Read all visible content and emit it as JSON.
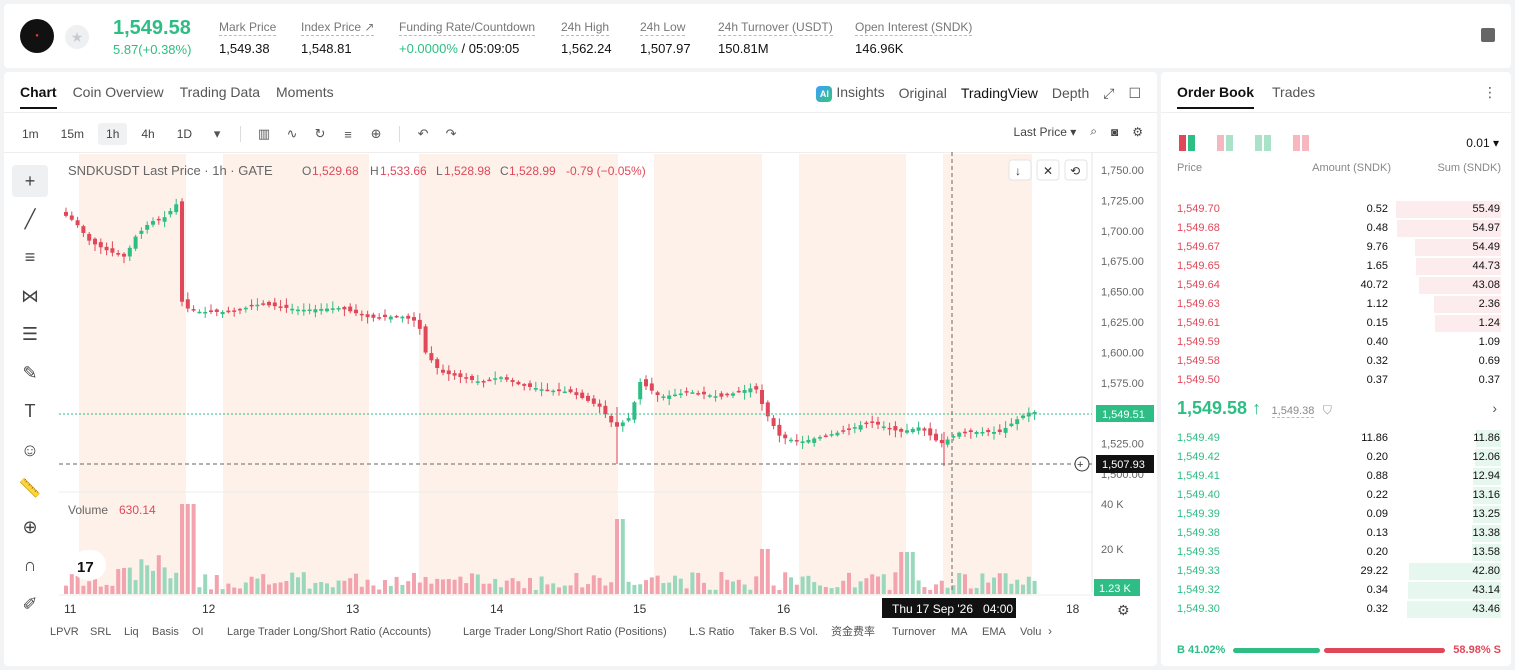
{
  "header": {
    "last_price": "1,549.58",
    "change": "5.87(+0.38%)",
    "stats": [
      {
        "label": "Mark Price",
        "value": "1,549.38"
      },
      {
        "label": "Index Price ↗",
        "value": "1,548.81"
      },
      {
        "label": "Funding Rate/Countdown",
        "value_green": "+0.0000%",
        "value": "/ 05:09:05"
      },
      {
        "label": "24h High",
        "value": "1,562.24"
      },
      {
        "label": "24h Low",
        "value": "1,507.97"
      },
      {
        "label": "24h Turnover (USDT)",
        "value": "150.81M"
      },
      {
        "label": "Open Interest (SNDK)",
        "value": "146.96K"
      }
    ]
  },
  "chart_tabs": [
    "Chart",
    "Coin Overview",
    "Trading Data",
    "Moments"
  ],
  "view_tabs": {
    "insights": "Insights",
    "original": "Original",
    "tradingview": "TradingView",
    "depth": "Depth"
  },
  "timeframes": [
    "1m",
    "15m",
    "1h",
    "4h",
    "1D"
  ],
  "toolbar_right": {
    "price_type": "Last Price"
  },
  "chart": {
    "legend_symbol": "SNDKUSDT Last Price · 1h · GATE",
    "ohlc": {
      "o": "1,529.68",
      "h": "1,533.66",
      "l": "1,528.98",
      "c": "1,528.99",
      "chg": "-0.79 (−0.05%)"
    },
    "volume_label": "Volume",
    "volume_value": "630.14",
    "current_price_tag": "1,549.51",
    "crosshair_price_tag": "1,507.93",
    "crosshair_time": "Thu 17 Sep '26   04:00",
    "volume_tag": "1.23 K",
    "price_ticks": [
      "1,750.00",
      "1,725.00",
      "1,700.00",
      "1,675.00",
      "1,650.00",
      "1,625.00",
      "1,600.00",
      "1,575.00",
      "1,550.00",
      "1,525.00",
      "1,500.00"
    ],
    "volume_ticks": [
      "40 K",
      "20 K"
    ],
    "date_ticks": [
      "11",
      "12",
      "13",
      "14",
      "15",
      "16",
      "18"
    ],
    "indicators": [
      "LPVR",
      "SRL",
      "Liq",
      "Basis",
      "OI",
      "Large Trader Long/Short Ratio (Accounts)",
      "Large Trader Long/Short Ratio (Positions)",
      "L.S Ratio",
      "Taker B.S Vol.",
      "资金费率",
      "Turnover",
      "MA",
      "EMA",
      "Volu"
    ]
  },
  "orderbook": {
    "tabs": [
      "Order Book",
      "Trades"
    ],
    "tick": "0.01 ▾",
    "columns": {
      "price": "Price",
      "amount": "Amount (SNDK)",
      "sum": "Sum (SNDK)"
    },
    "asks": [
      {
        "price": "1,549.70",
        "amount": "0.52",
        "sum": "55.49",
        "depth": 1.0
      },
      {
        "price": "1,549.68",
        "amount": "0.48",
        "sum": "54.97",
        "depth": 0.99
      },
      {
        "price": "1,549.67",
        "amount": "9.76",
        "sum": "54.49",
        "depth": 0.82
      },
      {
        "price": "1,549.65",
        "amount": "1.65",
        "sum": "44.73",
        "depth": 0.81
      },
      {
        "price": "1,549.64",
        "amount": "40.72",
        "sum": "43.08",
        "depth": 0.78
      },
      {
        "price": "1,549.63",
        "amount": "1.12",
        "sum": "2.36",
        "depth": 0.64
      },
      {
        "price": "1,549.61",
        "amount": "0.15",
        "sum": "1.24",
        "depth": 0.63
      },
      {
        "price": "1,549.59",
        "amount": "0.40",
        "sum": "1.09",
        "depth": 0
      },
      {
        "price": "1,549.58",
        "amount": "0.32",
        "sum": "0.69",
        "depth": 0
      },
      {
        "price": "1,549.50",
        "amount": "0.37",
        "sum": "0.37",
        "depth": 0
      }
    ],
    "mid_price": "1,549.58 ↑",
    "mark_price": "1,549.38",
    "bids": [
      {
        "price": "1,549.49",
        "amount": "11.86",
        "sum": "11.86",
        "depth": 0.24
      },
      {
        "price": "1,549.42",
        "amount": "0.20",
        "sum": "12.06",
        "depth": 0.25
      },
      {
        "price": "1,549.41",
        "amount": "0.88",
        "sum": "12.94",
        "depth": 0.27
      },
      {
        "price": "1,549.40",
        "amount": "0.22",
        "sum": "13.16",
        "depth": 0.27
      },
      {
        "price": "1,549.39",
        "amount": "0.09",
        "sum": "13.25",
        "depth": 0.27
      },
      {
        "price": "1,549.38",
        "amount": "0.13",
        "sum": "13.38",
        "depth": 0.28
      },
      {
        "price": "1,549.35",
        "amount": "0.20",
        "sum": "13.58",
        "depth": 0.28
      },
      {
        "price": "1,549.33",
        "amount": "29.22",
        "sum": "42.80",
        "depth": 0.88
      },
      {
        "price": "1,549.32",
        "amount": "0.34",
        "sum": "43.14",
        "depth": 0.89
      },
      {
        "price": "1,549.30",
        "amount": "0.32",
        "sum": "43.46",
        "depth": 0.9
      }
    ],
    "buy_ratio": "B 41.02%",
    "sell_ratio": "58.98% S",
    "buy_fraction": 0.4102
  },
  "colors": {
    "up": "#2ebd85",
    "down": "#e0485a",
    "session": "#fdf1ea"
  }
}
